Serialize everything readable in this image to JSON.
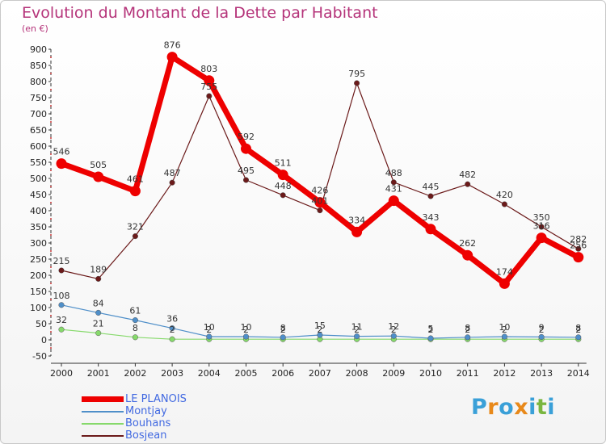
{
  "title": "Evolution du Montant de la Dette par Habitant",
  "unit": "(en €)",
  "logo": "Proxiti",
  "chart_data": {
    "type": "line",
    "title": "Evolution du Montant de la Dette par Habitant",
    "ylabel": "(en €)",
    "xlabel": "",
    "x": [
      "2000",
      "2001",
      "2002",
      "2003",
      "2004",
      "2005",
      "2006",
      "2007",
      "2008",
      "2009",
      "2010",
      "2011",
      "2012",
      "2013",
      "2014"
    ],
    "ylim": [
      -50,
      900
    ],
    "yticks": [
      -50,
      0,
      50,
      100,
      150,
      200,
      250,
      300,
      350,
      400,
      450,
      500,
      550,
      600,
      650,
      700,
      750,
      800,
      850,
      900
    ],
    "grid": false,
    "legend_position": "bottom-left",
    "series": [
      {
        "name": "LE PLANOIS",
        "color": "#ee0000",
        "values": [
          546,
          505,
          461,
          876,
          803,
          592,
          511,
          426,
          334,
          431,
          343,
          262,
          174,
          316,
          256
        ]
      },
      {
        "name": "Montjay",
        "color": "#4f8fc9",
        "values": [
          108,
          84,
          61,
          36,
          10,
          10,
          8,
          15,
          11,
          12,
          5,
          8,
          10,
          9,
          8
        ]
      },
      {
        "name": "Bouhans",
        "color": "#86d96b",
        "values": [
          32,
          21,
          8,
          2,
          2,
          2,
          2,
          2,
          2,
          2,
          2,
          2,
          2,
          2,
          2
        ]
      },
      {
        "name": "Bosjean",
        "color": "#6b1a1a",
        "values": [
          215,
          189,
          321,
          487,
          755,
          495,
          448,
          401,
          795,
          488,
          445,
          482,
          420,
          350,
          282
        ]
      }
    ]
  }
}
